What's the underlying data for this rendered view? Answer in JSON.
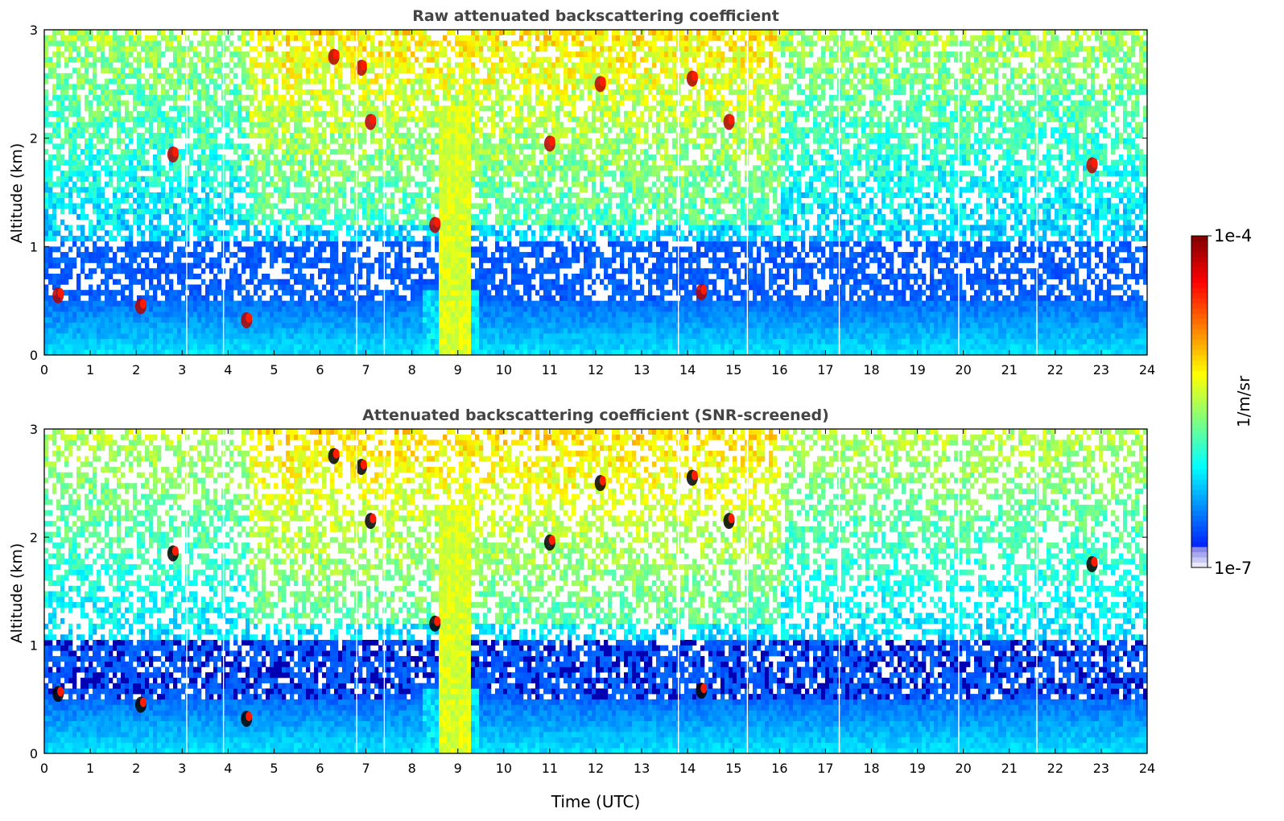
{
  "figure": {
    "xlabel": "Time (UTC)",
    "colorbar": {
      "label": "1/m/sr",
      "min_label": "1e-7",
      "max_label": "1e-4",
      "range": [
        1e-07,
        0.0001
      ],
      "scale": "log",
      "colormap": "jet"
    }
  },
  "chart_data": [
    {
      "type": "heatmap",
      "title": "Raw attenuated backscattering coefficient",
      "xlabel": "",
      "ylabel": "Altitude (km)",
      "xlim": [
        0,
        24
      ],
      "ylim": [
        0,
        3
      ],
      "x_ticks": [
        "0",
        "1",
        "2",
        "3",
        "4",
        "5",
        "6",
        "7",
        "8",
        "9",
        "10",
        "11",
        "12",
        "13",
        "14",
        "15",
        "16",
        "17",
        "18",
        "19",
        "20",
        "21",
        "22",
        "23",
        "24"
      ],
      "y_ticks": [
        "0",
        "1",
        "2",
        "3"
      ],
      "grid": false,
      "features": {
        "boundary_layer_top_km": 0.5,
        "noise_begins_km": 1.0,
        "dense_low_cloud_hours": [
          8.2,
          9.5
        ],
        "elevated_cloud_patches": [
          {
            "t": 6.3,
            "alt": 2.75
          },
          {
            "t": 6.9,
            "alt": 2.65
          },
          {
            "t": 7.1,
            "alt": 2.15
          },
          {
            "t": 11.0,
            "alt": 1.95
          },
          {
            "t": 12.1,
            "alt": 2.5
          },
          {
            "t": 14.1,
            "alt": 2.55
          },
          {
            "t": 14.9,
            "alt": 2.15
          },
          {
            "t": 2.8,
            "alt": 1.85
          },
          {
            "t": 22.8,
            "alt": 1.75
          },
          {
            "t": 8.5,
            "alt": 1.2
          },
          {
            "t": 14.3,
            "alt": 0.58
          },
          {
            "t": 4.4,
            "alt": 0.32
          },
          {
            "t": 2.1,
            "alt": 0.45
          },
          {
            "t": 0.3,
            "alt": 0.55
          }
        ],
        "missing_profiles_hours": [
          3.1,
          3.9,
          6.8,
          7.4,
          13.8,
          15.3,
          17.3,
          19.9,
          21.6
        ]
      }
    },
    {
      "type": "heatmap",
      "title": "Attenuated backscattering coefficient (SNR-screened)",
      "xlabel": "Time (UTC)",
      "ylabel": "Altitude (km)",
      "xlim": [
        0,
        24
      ],
      "ylim": [
        0,
        3
      ],
      "x_ticks": [
        "0",
        "1",
        "2",
        "3",
        "4",
        "5",
        "6",
        "7",
        "8",
        "9",
        "10",
        "11",
        "12",
        "13",
        "14",
        "15",
        "16",
        "17",
        "18",
        "19",
        "20",
        "21",
        "22",
        "23",
        "24"
      ],
      "y_ticks": [
        "0",
        "1",
        "2",
        "3"
      ],
      "grid": false,
      "features": {
        "boundary_layer_top_km": 0.5,
        "screened_layer_km": [
          0.5,
          1.1
        ],
        "dense_low_cloud_hours": [
          8.2,
          9.5
        ],
        "saturated_color": "#000000",
        "missing_profiles_hours": [
          3.1,
          3.9,
          6.8,
          7.4,
          13.8,
          15.3,
          17.3,
          19.9,
          21.6
        ]
      }
    }
  ]
}
